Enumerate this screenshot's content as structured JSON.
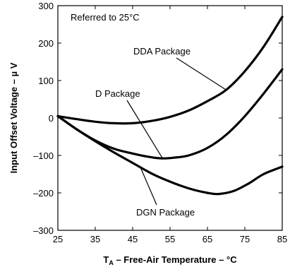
{
  "chart_data": {
    "type": "line",
    "xlabel_main": "T",
    "xlabel_sub": "A",
    "xlabel_rest": " – Free-Air Temperature – °C",
    "ylabel": "Input Offset Voltage – µ V",
    "xlim": [
      25,
      85
    ],
    "ylim": [
      -300,
      300
    ],
    "x_ticks": [
      25,
      35,
      45,
      55,
      65,
      75,
      85
    ],
    "y_ticks": [
      300,
      200,
      100,
      0,
      -100,
      -200,
      -300
    ],
    "y_tick_labels": [
      "300",
      "200",
      "100",
      "0",
      "–100",
      "–200",
      "–300"
    ],
    "grid": false,
    "series": [
      {
        "name": "DDA Package",
        "x": [
          25,
          30,
          35,
          40,
          45,
          50,
          55,
          60,
          65,
          70,
          75,
          80,
          85
        ],
        "y": [
          5,
          -3,
          -10,
          -14,
          -14,
          -8,
          3,
          20,
          45,
          75,
          125,
          190,
          270
        ]
      },
      {
        "name": "D Package",
        "x": [
          25,
          30,
          35,
          40,
          45,
          50,
          53,
          56,
          60,
          65,
          70,
          75,
          80,
          85
        ],
        "y": [
          5,
          -30,
          -60,
          -82,
          -95,
          -105,
          -108,
          -106,
          -100,
          -80,
          -45,
          5,
          65,
          130
        ]
      },
      {
        "name": "DGN Package",
        "x": [
          25,
          30,
          35,
          40,
          45,
          50,
          55,
          60,
          65,
          68,
          72,
          76,
          80,
          85
        ],
        "y": [
          5,
          -30,
          -62,
          -92,
          -120,
          -148,
          -170,
          -188,
          -200,
          -203,
          -195,
          -175,
          -150,
          -130
        ]
      }
    ],
    "annotations": {
      "reference": "Referred to 25°C"
    }
  }
}
